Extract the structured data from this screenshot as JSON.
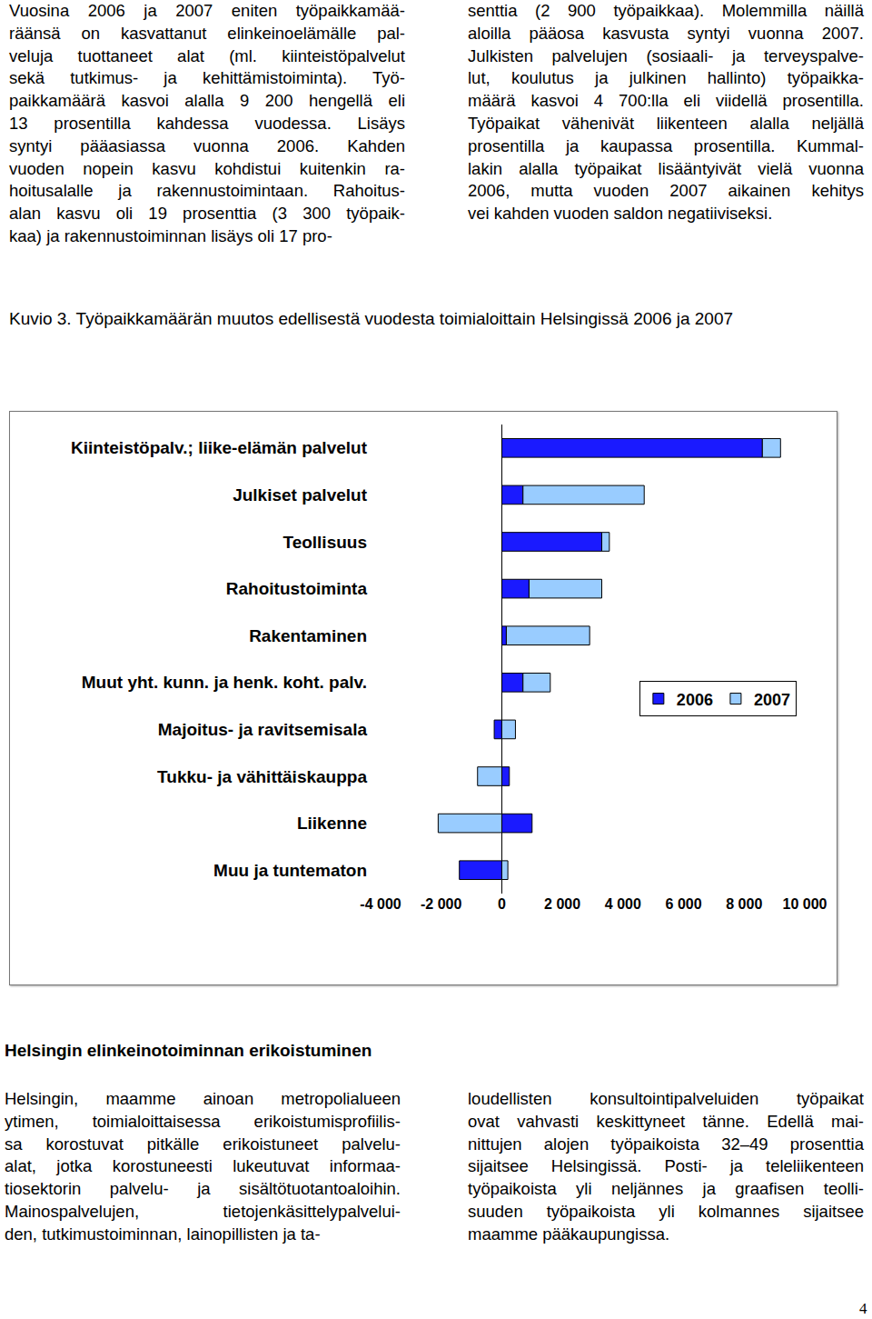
{
  "page": {
    "top_left": [
      "Vuosina 2006 ja 2007 eniten työpaikkamää-",
      "räänsä on kasvattanut elinkeinoelämälle pal-",
      "veluja tuottaneet alat (ml. kiinteistöpalvelut",
      "sekä tutkimus- ja kehittämistoiminta). Työ-",
      "paikkamäärä kasvoi alalla 9 200 hengellä eli",
      "13 prosentilla kahdessa vuodessa. Lisäys",
      "syntyi pääasiassa vuonna 2006. Kahden",
      "vuoden nopein kasvu kohdistui kuitenkin ra-",
      "hoitusalalle ja rakennustoimintaan. Rahoitus-",
      "alan kasvu oli 19 prosenttia (3 300 työpaik-",
      "kaa) ja rakennustoiminnan lisäys oli 17 pro-"
    ],
    "top_right": [
      "senttia (2 900 työpaikkaa). Molemmilla näillä",
      "aloilla pääosa kasvusta syntyi vuonna 2007.",
      "Julkisten palvelujen (sosiaali- ja terveyspalve-",
      "lut, koulutus ja julkinen hallinto) työpaikka-",
      "määrä kasvoi 4 700:lla eli viidellä prosentilla.",
      "Työpaikat vähenivät liikenteen alalla neljällä",
      "prosentilla ja kaupassa prosentilla. Kummal-",
      "lakin alalla työpaikat lisääntyivät vielä vuonna",
      "2006, mutta vuoden 2007 aikainen kehitys",
      "vei kahden vuoden saldon negatiiviseksi."
    ],
    "caption": "Kuvio 3. Työpaikkamäärän muutos edellisestä vuodesta toimialoittain Helsingissä 2006 ja 2007",
    "heading": "Helsingin elinkeinotoiminnan erikoistuminen",
    "bottom_left": [
      "Helsingin, maamme ainoan metropolialueen",
      "ytimen, toimialoittaisessa erikoistumisprofiilis-",
      "sa korostuvat pitkälle erikoistuneet palvelu-",
      "alat, jotka korostuneesti lukeutuvat informaa-",
      "tiosektorin palvelu- ja sisältötuotantoaloihin.",
      "Mainospalvelujen, tietojenkäsittelypalvelui-",
      "den, tutkimustoiminnan, lainopillisten ja ta-"
    ],
    "bottom_right": [
      "loudellisten konsultointipalveluiden työpaikat",
      "ovat vahvasti keskittyneet tänne. Edellä mai-",
      "nittujen alojen työpaikoista 32–49 prosenttia",
      "sijaitsee Helsingissä. Posti- ja teleliikenteen",
      "työpaikoista yli neljännes ja graafisen teolli-",
      "suuden työpaikoista yli kolmannes sijaitsee",
      "maamme pääkaupungissa."
    ],
    "page_number": "4"
  },
  "chart_data": {
    "type": "bar",
    "orientation": "horizontal",
    "stacked": true,
    "grid": false,
    "categories": [
      "Kiinteistöpalv.; liike-elämän palvelut",
      "Julkiset palvelut",
      "Teollisuus",
      "Rahoitustoiminta",
      "Rakentaminen",
      "Muut yht. kunn. ja henk. koht. palv.",
      "Majoitus- ja ravitsemisala",
      "Tukku- ja vähittäiskauppa",
      "Liikenne",
      "Muu ja tuntematon"
    ],
    "series": [
      {
        "name": "2006",
        "color": "#1a1aff",
        "values": [
          8600,
          700,
          3300,
          900,
          150,
          700,
          -250,
          250,
          1000,
          -1400
        ]
      },
      {
        "name": "2007",
        "color": "#99ccff",
        "values": [
          600,
          4000,
          250,
          2400,
          2750,
          900,
          450,
          -800,
          -2100,
          200
        ]
      }
    ],
    "xlim": [
      -4000,
      10000
    ],
    "xticks": [
      {
        "value": -4000,
        "label": "-4 000"
      },
      {
        "value": -2000,
        "label": "-2 000"
      },
      0,
      {
        "value": 2000,
        "label": "2 000"
      },
      {
        "value": 4000,
        "label": "4 000"
      },
      {
        "value": 6000,
        "label": "6 000"
      },
      {
        "value": 8000,
        "label": "8 000"
      },
      {
        "value": 10000,
        "label": "10 000"
      }
    ]
  }
}
